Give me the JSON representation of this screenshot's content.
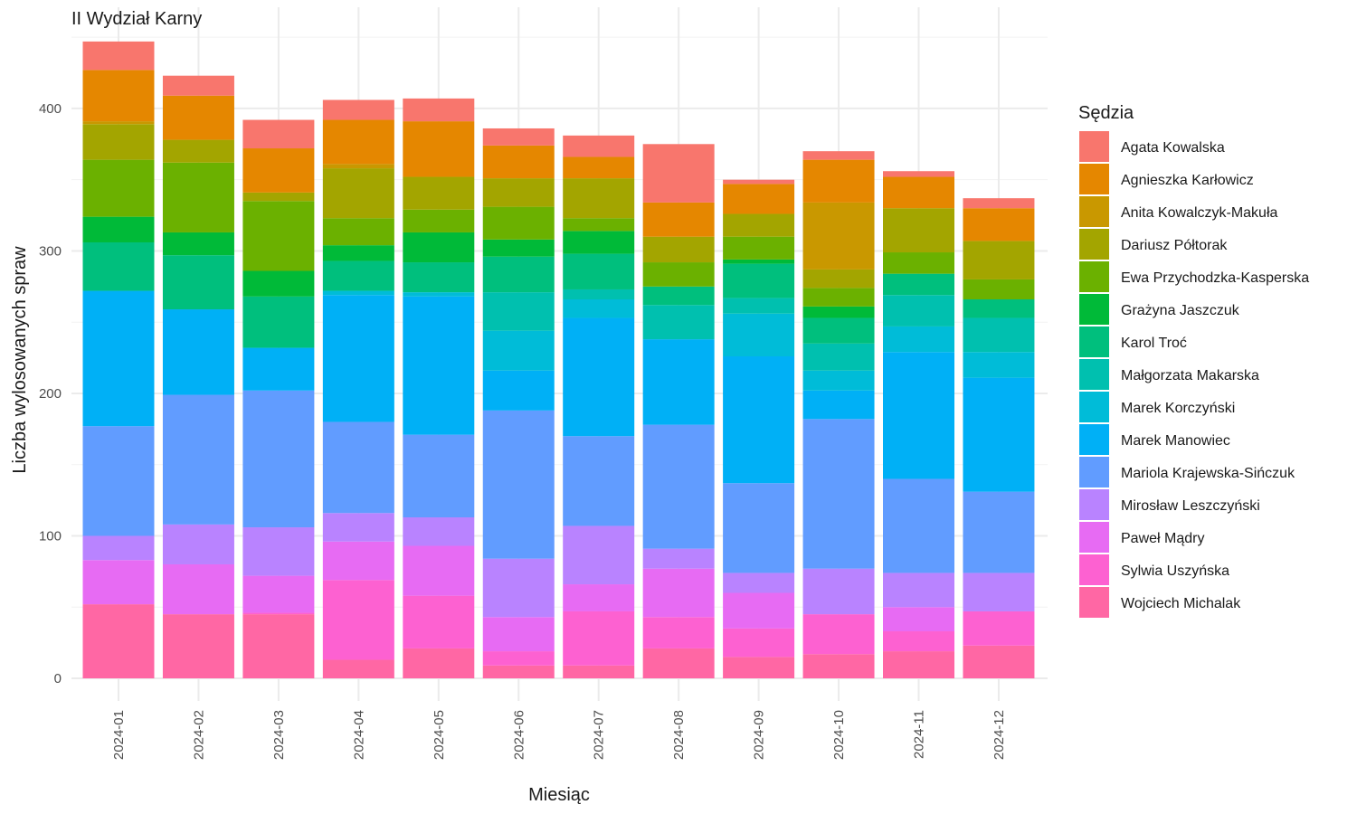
{
  "chart_data": {
    "type": "bar",
    "stacked": true,
    "title": "II Wydział Karny",
    "xlabel": "Miesiąc",
    "ylabel": "Liczba wylosowanych spraw",
    "ylim": [
      0,
      450
    ],
    "yticks": [
      0,
      100,
      200,
      300,
      400
    ],
    "grid": true,
    "legend_title": "Sędzia",
    "legend_position": "right",
    "categories": [
      "2024-01",
      "2024-02",
      "2024-03",
      "2024-04",
      "2024-05",
      "2024-06",
      "2024-07",
      "2024-08",
      "2024-09",
      "2024-10",
      "2024-11",
      "2024-12"
    ],
    "series": [
      {
        "name": "Agata Kowalska",
        "color": "#F8766D",
        "values": [
          20,
          14,
          20,
          14,
          16,
          12,
          15,
          41,
          3,
          6,
          4,
          7
        ]
      },
      {
        "name": "Agnieszka Karłowicz",
        "color": "#E58700",
        "values": [
          36,
          31,
          31,
          31,
          39,
          23,
          15,
          24,
          21,
          30,
          22,
          23
        ]
      },
      {
        "name": "Anita Kowalczyk-Makuła",
        "color": "#C99800",
        "values": [
          2,
          0,
          0,
          3,
          0,
          0,
          0,
          0,
          0,
          47,
          0,
          0
        ]
      },
      {
        "name": "Dariusz Półtorak",
        "color": "#A3A500",
        "values": [
          25,
          16,
          6,
          35,
          23,
          20,
          28,
          18,
          16,
          13,
          31,
          27
        ]
      },
      {
        "name": "Ewa Przychodzka-Kasperska",
        "color": "#6BB100",
        "values": [
          40,
          49,
          49,
          19,
          16,
          23,
          9,
          17,
          16,
          13,
          15,
          14
        ]
      },
      {
        "name": "Grażyna Jaszczuk",
        "color": "#00BA38",
        "values": [
          18,
          16,
          18,
          11,
          21,
          12,
          16,
          0,
          3,
          8,
          0,
          0
        ]
      },
      {
        "name": "Karol Troć",
        "color": "#00BF7D",
        "values": [
          34,
          38,
          36,
          21,
          21,
          25,
          25,
          13,
          24,
          18,
          15,
          13
        ]
      },
      {
        "name": "Małgorzata Makarska",
        "color": "#00C0AF",
        "values": [
          0,
          0,
          0,
          0,
          0,
          27,
          7,
          24,
          11,
          19,
          22,
          24
        ]
      },
      {
        "name": "Marek Korczyński",
        "color": "#00BCD8",
        "values": [
          0,
          0,
          0,
          3,
          3,
          28,
          13,
          0,
          30,
          14,
          18,
          18
        ]
      },
      {
        "name": "Marek Manowiec",
        "color": "#00B0F6",
        "values": [
          95,
          60,
          30,
          89,
          97,
          28,
          83,
          60,
          89,
          20,
          89,
          80
        ]
      },
      {
        "name": "Mariola Krajewska-Sińczuk",
        "color": "#619CFF",
        "values": [
          77,
          91,
          96,
          64,
          58,
          104,
          63,
          87,
          63,
          105,
          66,
          57
        ]
      },
      {
        "name": "Mirosław Leszczyński",
        "color": "#B983FF",
        "values": [
          17,
          28,
          34,
          20,
          20,
          41,
          41,
          14,
          14,
          32,
          24,
          27
        ]
      },
      {
        "name": "Paweł Mądry",
        "color": "#E76BF3",
        "values": [
          31,
          35,
          26,
          27,
          35,
          24,
          19,
          34,
          25,
          0,
          17,
          0
        ]
      },
      {
        "name": "Sylwia Uszyńska",
        "color": "#FD61D1",
        "values": [
          0,
          0,
          1,
          56,
          37,
          10,
          38,
          22,
          20,
          28,
          14,
          24
        ]
      },
      {
        "name": "Wojciech Michalak",
        "color": "#FF67A4",
        "values": [
          52,
          45,
          45,
          13,
          21,
          9,
          9,
          21,
          15,
          17,
          19,
          23
        ]
      }
    ]
  }
}
